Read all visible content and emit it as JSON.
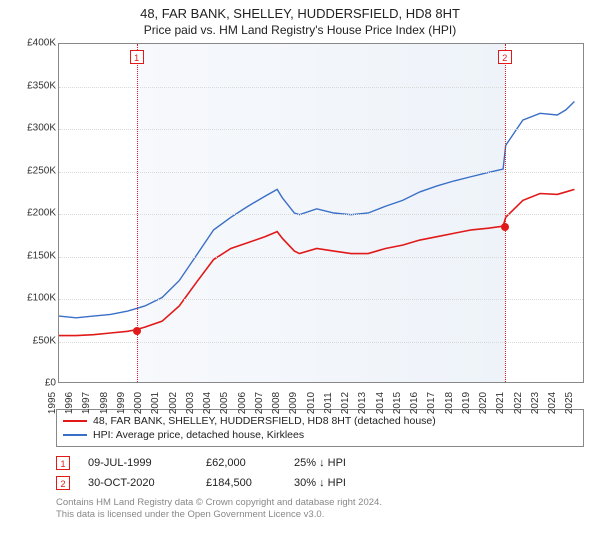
{
  "title": "48, FAR BANK, SHELLEY, HUDDERSFIELD, HD8 8HT",
  "subtitle": "Price paid vs. HM Land Registry's House Price Index (HPI)",
  "chart": {
    "type": "line",
    "background_color": "#ffffff",
    "border_color": "#888888",
    "grid_color": "#d9d9d9",
    "label_fontsize": 10,
    "y": {
      "min": 0,
      "max": 400000,
      "step": 50000,
      "prefix": "£",
      "suffix_k": true,
      "ticks": [
        0,
        50000,
        100000,
        150000,
        200000,
        250000,
        300000,
        350000,
        400000
      ]
    },
    "x": {
      "min": 1995,
      "max": 2025.5,
      "ticks_step": 1,
      "ticks": [
        1995,
        1996,
        1997,
        1998,
        1999,
        2000,
        2001,
        2002,
        2003,
        2004,
        2005,
        2006,
        2007,
        2008,
        2009,
        2010,
        2011,
        2012,
        2013,
        2014,
        2015,
        2016,
        2017,
        2018,
        2019,
        2020,
        2021,
        2022,
        2023,
        2024,
        2025
      ]
    },
    "gradient_bands": {
      "color_light": "#f7f9fc",
      "color_dark": "#eef3f9",
      "start": 1999.5,
      "end": 2020.85
    },
    "series": [
      {
        "key": "price_paid",
        "label": "48, FAR BANK, SHELLEY, HUDDERSFIELD, HD8 8HT (detached house)",
        "color": "#e11919",
        "line_width": 1.6,
        "data": [
          [
            1995,
            55000
          ],
          [
            1996,
            55000
          ],
          [
            1997,
            56000
          ],
          [
            1998,
            58000
          ],
          [
            1999,
            60000
          ],
          [
            1999.5,
            62000
          ],
          [
            2000,
            65000
          ],
          [
            2001,
            72000
          ],
          [
            2002,
            90000
          ],
          [
            2003,
            118000
          ],
          [
            2004,
            145000
          ],
          [
            2005,
            158000
          ],
          [
            2006,
            165000
          ],
          [
            2007,
            172000
          ],
          [
            2007.7,
            178000
          ],
          [
            2008,
            170000
          ],
          [
            2008.7,
            155000
          ],
          [
            2009,
            152000
          ],
          [
            2010,
            158000
          ],
          [
            2011,
            155000
          ],
          [
            2012,
            152000
          ],
          [
            2013,
            152000
          ],
          [
            2014,
            158000
          ],
          [
            2015,
            162000
          ],
          [
            2016,
            168000
          ],
          [
            2017,
            172000
          ],
          [
            2018,
            176000
          ],
          [
            2019,
            180000
          ],
          [
            2020,
            182000
          ],
          [
            2020.85,
            184500
          ],
          [
            2021,
            195000
          ],
          [
            2022,
            215000
          ],
          [
            2023,
            223000
          ],
          [
            2024,
            222000
          ],
          [
            2024.5,
            225000
          ],
          [
            2025,
            228000
          ]
        ]
      },
      {
        "key": "hpi",
        "label": "HPI: Average price, detached house, Kirklees",
        "color": "#3a6fc7",
        "line_width": 1.4,
        "data": [
          [
            1995,
            78000
          ],
          [
            1996,
            76000
          ],
          [
            1997,
            78000
          ],
          [
            1998,
            80000
          ],
          [
            1999,
            84000
          ],
          [
            2000,
            90000
          ],
          [
            2001,
            100000
          ],
          [
            2002,
            120000
          ],
          [
            2003,
            150000
          ],
          [
            2004,
            180000
          ],
          [
            2005,
            195000
          ],
          [
            2006,
            208000
          ],
          [
            2007,
            220000
          ],
          [
            2007.7,
            228000
          ],
          [
            2008,
            218000
          ],
          [
            2008.7,
            200000
          ],
          [
            2009,
            198000
          ],
          [
            2010,
            205000
          ],
          [
            2011,
            200000
          ],
          [
            2012,
            198000
          ],
          [
            2013,
            200000
          ],
          [
            2014,
            208000
          ],
          [
            2015,
            215000
          ],
          [
            2016,
            225000
          ],
          [
            2017,
            232000
          ],
          [
            2018,
            238000
          ],
          [
            2019,
            243000
          ],
          [
            2020,
            248000
          ],
          [
            2020.85,
            252000
          ],
          [
            2021,
            280000
          ],
          [
            2022,
            310000
          ],
          [
            2023,
            318000
          ],
          [
            2024,
            316000
          ],
          [
            2024.5,
            322000
          ],
          [
            2025,
            332000
          ]
        ]
      }
    ],
    "markers": [
      {
        "n": "1",
        "x": 1999.5,
        "y": 62000,
        "color": "#e11919"
      },
      {
        "n": "2",
        "x": 2020.85,
        "y": 184500,
        "color": "#e11919"
      }
    ]
  },
  "legend": {
    "items": [
      {
        "series": "price_paid"
      },
      {
        "series": "hpi"
      }
    ]
  },
  "sales": [
    {
      "n": "1",
      "date": "09-JUL-1999",
      "price": "£62,000",
      "diff": "25% ↓ HPI",
      "color": "#e11919"
    },
    {
      "n": "2",
      "date": "30-OCT-2020",
      "price": "£184,500",
      "diff": "30% ↓ HPI",
      "color": "#e11919"
    }
  ],
  "footer": {
    "line1": "Contains HM Land Registry data © Crown copyright and database right 2024.",
    "line2": "This data is licensed under the Open Government Licence v3.0."
  }
}
